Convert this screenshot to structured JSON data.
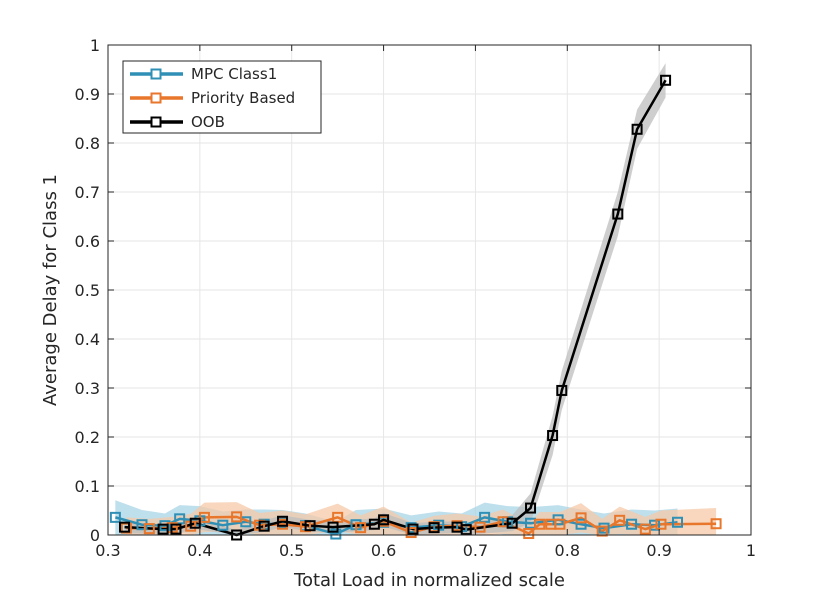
{
  "chart_data": {
    "type": "line",
    "xlabel": "Total Load in normalized scale",
    "ylabel": "Average Delay for Class 1",
    "xlim": [
      0.3,
      1
    ],
    "ylim": [
      0,
      1
    ],
    "xticks": [
      0.3,
      0.4,
      0.5,
      0.6,
      0.7,
      0.8,
      0.9,
      1
    ],
    "xtick_labels": [
      "0.3",
      "0.4",
      "0.5",
      "0.6",
      "0.7",
      "0.8",
      "0.9",
      "1"
    ],
    "yticks": [
      0,
      0.1,
      0.2,
      0.3,
      0.4,
      0.5,
      0.6,
      0.7,
      0.8,
      0.9,
      1
    ],
    "ytick_labels": [
      "0",
      "0.1",
      "0.2",
      "0.3",
      "0.4",
      "0.5",
      "0.6",
      "0.7",
      "0.8",
      "0.9",
      "1"
    ],
    "grid": true,
    "legend_position": "top-left",
    "series": [
      {
        "name": "MPC Class1",
        "color": "#2f8fb5",
        "band_color": "#a8d4e6",
        "x": [
          0.308,
          0.337,
          0.362,
          0.378,
          0.4,
          0.425,
          0.45,
          0.47,
          0.49,
          0.515,
          0.548,
          0.57,
          0.6,
          0.63,
          0.66,
          0.685,
          0.71,
          0.735,
          0.76,
          0.79,
          0.815,
          0.84,
          0.87,
          0.895,
          0.92
        ],
        "values": [
          0.036,
          0.021,
          0.019,
          0.033,
          0.029,
          0.02,
          0.027,
          0.022,
          0.024,
          0.019,
          0.002,
          0.021,
          0.026,
          0.015,
          0.02,
          0.017,
          0.036,
          0.027,
          0.024,
          0.031,
          0.022,
          0.014,
          0.022,
          0.02,
          0.026
        ],
        "spread": [
          0.035,
          0.03,
          0.025,
          0.028,
          0.03,
          0.028,
          0.025,
          0.03,
          0.027,
          0.025,
          0.025,
          0.03,
          0.028,
          0.025,
          0.028,
          0.027,
          0.03,
          0.032,
          0.033,
          0.03,
          0.03,
          0.03,
          0.03,
          0.03,
          0.028
        ]
      },
      {
        "name": "Priority Based",
        "color": "#e8762b",
        "band_color": "#f6c9a8",
        "x": [
          0.32,
          0.345,
          0.37,
          0.39,
          0.405,
          0.44,
          0.465,
          0.49,
          0.515,
          0.55,
          0.575,
          0.6,
          0.63,
          0.655,
          0.68,
          0.705,
          0.73,
          0.758,
          0.77,
          0.782,
          0.792,
          0.815,
          0.838,
          0.857,
          0.885,
          0.902,
          0.962
        ],
        "values": [
          0.014,
          0.013,
          0.015,
          0.018,
          0.036,
          0.037,
          0.02,
          0.022,
          0.017,
          0.036,
          0.015,
          0.028,
          0.005,
          0.017,
          0.019,
          0.016,
          0.027,
          0.003,
          0.022,
          0.022,
          0.022,
          0.035,
          0.008,
          0.03,
          0.012,
          0.022,
          0.023
        ],
        "spread": [
          0.022,
          0.02,
          0.022,
          0.025,
          0.03,
          0.03,
          0.025,
          0.028,
          0.025,
          0.028,
          0.025,
          0.03,
          0.02,
          0.022,
          0.025,
          0.022,
          0.025,
          0.02,
          0.025,
          0.025,
          0.025,
          0.03,
          0.025,
          0.028,
          0.025,
          0.028,
          0.032
        ]
      },
      {
        "name": "OOB",
        "color": "#000000",
        "band_color": "#bdbdbd",
        "x": [
          0.318,
          0.36,
          0.374,
          0.395,
          0.44,
          0.47,
          0.49,
          0.52,
          0.545,
          0.59,
          0.6,
          0.632,
          0.655,
          0.68,
          0.69,
          0.74,
          0.76,
          0.784,
          0.794,
          0.855,
          0.876,
          0.907
        ],
        "values": [
          0.016,
          0.012,
          0.012,
          0.024,
          0.0,
          0.018,
          0.028,
          0.019,
          0.016,
          0.022,
          0.031,
          0.012,
          0.015,
          0.016,
          0.011,
          0.024,
          0.055,
          0.203,
          0.295,
          0.655,
          0.828,
          0.928
        ],
        "spread": [
          0.012,
          0.01,
          0.01,
          0.012,
          0.01,
          0.012,
          0.012,
          0.012,
          0.012,
          0.012,
          0.014,
          0.012,
          0.012,
          0.012,
          0.012,
          0.016,
          0.03,
          0.04,
          0.04,
          0.045,
          0.04,
          0.035
        ]
      }
    ]
  }
}
